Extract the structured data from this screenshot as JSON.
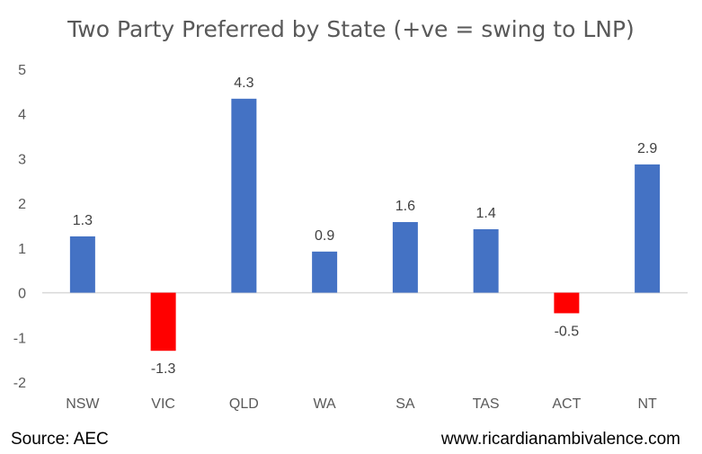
{
  "chart_data": {
    "type": "bar",
    "title": "Two Party Preferred by State (+ve = swing to LNP)",
    "categories": [
      "NSW",
      "VIC",
      "QLD",
      "WA",
      "SA",
      "TAS",
      "ACT",
      "NT"
    ],
    "values": [
      1.26,
      -1.3,
      4.34,
      0.92,
      1.58,
      1.42,
      -0.46,
      2.87
    ],
    "data_labels": [
      "1.3",
      "-1.3",
      "4.3",
      "0.9",
      "1.6",
      "1.4",
      "-0.5",
      "2.9"
    ],
    "y_ticks": [
      "-2",
      "-1",
      "0",
      "1",
      "2",
      "3",
      "4",
      "5"
    ],
    "ylim": [
      -2,
      5
    ],
    "xlabel": "",
    "ylabel": "",
    "grid": false,
    "legend": "none",
    "colors": {
      "positive": "#4472C4",
      "negative": "#FF0000",
      "zero_line": "#D9D9D9",
      "axis_text": "#595959"
    }
  },
  "footer": {
    "source": "Source: AEC",
    "website": "www.ricardianambivalence.com"
  }
}
